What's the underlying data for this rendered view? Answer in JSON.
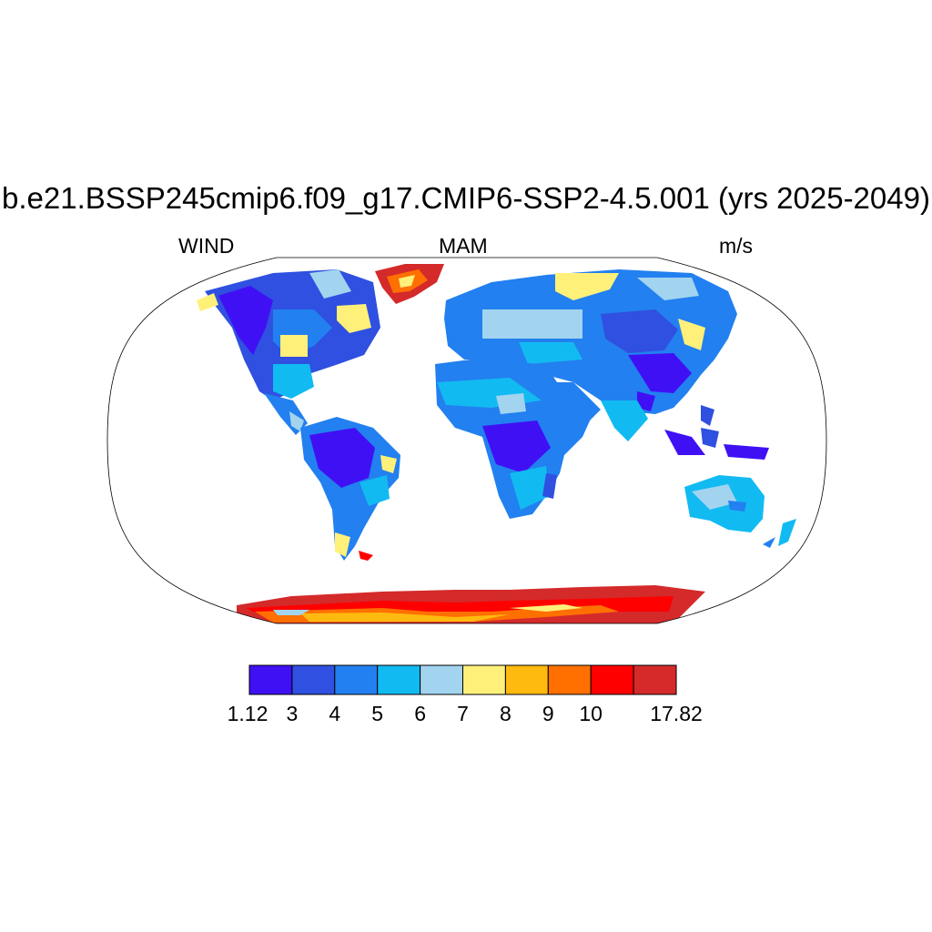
{
  "title": "b.e21.BSSP245cmip6.f09_g17.CMIP6-SSP2-4.5.001 (yrs 2025-2049)",
  "left_label": "WIND",
  "center_label": "MAM",
  "right_label": "m/s",
  "colorbar": {
    "labels": [
      "1.12",
      "3",
      "4",
      "5",
      "6",
      "7",
      "8",
      "9",
      "10",
      "17.82"
    ],
    "colors": [
      "#4010f5",
      "#2f50e0",
      "#2280f0",
      "#12baf2",
      "#a2d4ef",
      "#fff07a",
      "#ffba10",
      "#ff7000",
      "#ff0000",
      "#d42a2a"
    ]
  }
}
